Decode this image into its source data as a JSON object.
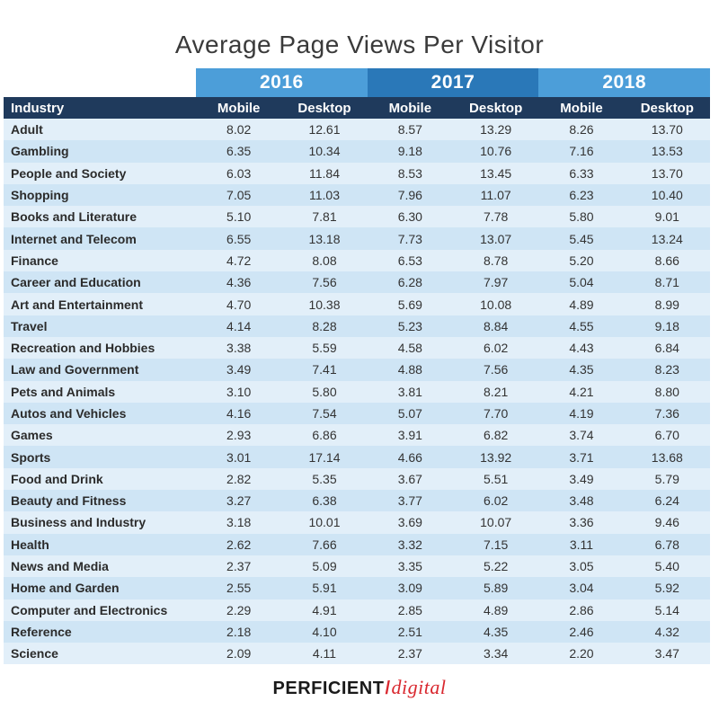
{
  "title": "Average Page Views Per Visitor",
  "chart_data": {
    "type": "table",
    "title": "Average Page Views Per Visitor",
    "years": [
      "2016",
      "2017",
      "2018"
    ],
    "columns": [
      "Industry",
      "Mobile",
      "Desktop",
      "Mobile",
      "Desktop",
      "Mobile",
      "Desktop"
    ],
    "rows": [
      [
        "Adult",
        "8.02",
        "12.61",
        "8.57",
        "13.29",
        "8.26",
        "13.70"
      ],
      [
        "Gambling",
        "6.35",
        "10.34",
        "9.18",
        "10.76",
        "7.16",
        "13.53"
      ],
      [
        "People and Society",
        "6.03",
        "11.84",
        "8.53",
        "13.45",
        "6.33",
        "13.70"
      ],
      [
        "Shopping",
        "7.05",
        "11.03",
        "7.96",
        "11.07",
        "6.23",
        "10.40"
      ],
      [
        "Books and Literature",
        "5.10",
        "7.81",
        "6.30",
        "7.78",
        "5.80",
        "9.01"
      ],
      [
        "Internet and Telecom",
        "6.55",
        "13.18",
        "7.73",
        "13.07",
        "5.45",
        "13.24"
      ],
      [
        "Finance",
        "4.72",
        "8.08",
        "6.53",
        "8.78",
        "5.20",
        "8.66"
      ],
      [
        "Career and Education",
        "4.36",
        "7.56",
        "6.28",
        "7.97",
        "5.04",
        "8.71"
      ],
      [
        "Art and Entertainment",
        "4.70",
        "10.38",
        "5.69",
        "10.08",
        "4.89",
        "8.99"
      ],
      [
        "Travel",
        "4.14",
        "8.28",
        "5.23",
        "8.84",
        "4.55",
        "9.18"
      ],
      [
        "Recreation and Hobbies",
        "3.38",
        "5.59",
        "4.58",
        "6.02",
        "4.43",
        "6.84"
      ],
      [
        "Law and Government",
        "3.49",
        "7.41",
        "4.88",
        "7.56",
        "4.35",
        "8.23"
      ],
      [
        "Pets and Animals",
        "3.10",
        "5.80",
        "3.81",
        "8.21",
        "4.21",
        "8.80"
      ],
      [
        "Autos and Vehicles",
        "4.16",
        "7.54",
        "5.07",
        "7.70",
        "4.19",
        "7.36"
      ],
      [
        "Games",
        "2.93",
        "6.86",
        "3.91",
        "6.82",
        "3.74",
        "6.70"
      ],
      [
        "Sports",
        "3.01",
        "17.14",
        "4.66",
        "13.92",
        "3.71",
        "13.68"
      ],
      [
        "Food and Drink",
        "2.82",
        "5.35",
        "3.67",
        "5.51",
        "3.49",
        "5.79"
      ],
      [
        "Beauty and Fitness",
        "3.27",
        "6.38",
        "3.77",
        "6.02",
        "3.48",
        "6.24"
      ],
      [
        "Business and Industry",
        "3.18",
        "10.01",
        "3.69",
        "10.07",
        "3.36",
        "9.46"
      ],
      [
        "Health",
        "2.62",
        "7.66",
        "3.32",
        "7.15",
        "3.11",
        "6.78"
      ],
      [
        "News and Media",
        "2.37",
        "5.09",
        "3.35",
        "5.22",
        "3.05",
        "5.40"
      ],
      [
        "Home and Garden",
        "2.55",
        "5.91",
        "3.09",
        "5.89",
        "3.04",
        "5.92"
      ],
      [
        "Computer and Electronics",
        "2.29",
        "4.91",
        "2.85",
        "4.89",
        "2.86",
        "5.14"
      ],
      [
        "Reference",
        "2.18",
        "4.10",
        "2.51",
        "4.35",
        "2.46",
        "4.32"
      ],
      [
        "Science",
        "2.09",
        "4.11",
        "2.37",
        "3.34",
        "2.20",
        "3.47"
      ]
    ]
  },
  "logo": {
    "part1": "PERFICIENT",
    "slash": "/",
    "part2": "digital"
  },
  "colors": {
    "year_light": "#4c9ed9",
    "year_dark": "#2a78b8",
    "header_bg": "#1f3a5c",
    "row_even": "#e2eff9",
    "row_odd": "#cfe5f5",
    "logo_accent": "#d9282f"
  }
}
